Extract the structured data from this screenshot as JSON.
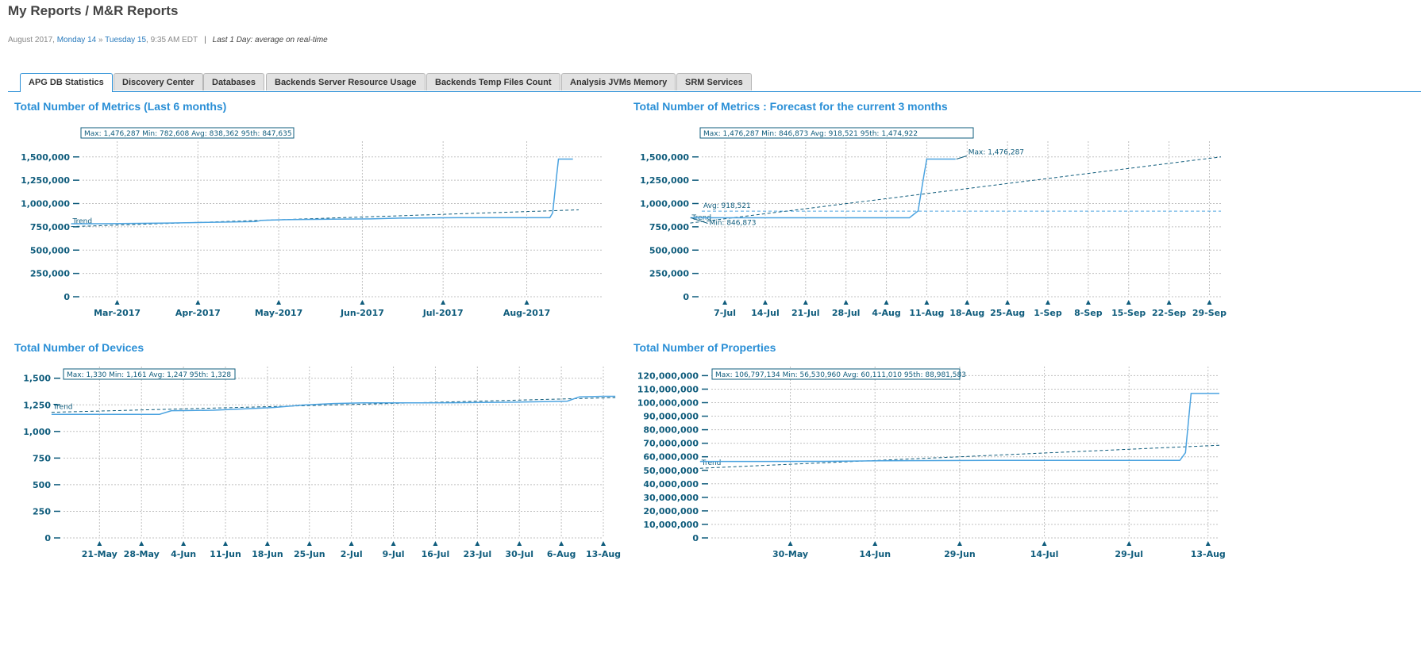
{
  "header": {
    "title": "My Reports / M&R Reports",
    "date_prefix": "August 2017, ",
    "date_from": "Monday 14",
    "date_arrow": " » ",
    "date_to": "Tuesday 15",
    "time": ", 9:35 AM EDT",
    "separator": "|",
    "note": "Last 1 Day: average on real-time"
  },
  "tabs": [
    {
      "label": "APG DB Statistics",
      "active": true
    },
    {
      "label": "Discovery Center",
      "active": false
    },
    {
      "label": "Databases",
      "active": false
    },
    {
      "label": "Backends Server Resource Usage",
      "active": false
    },
    {
      "label": "Backends Temp Files Count",
      "active": false
    },
    {
      "label": "Analysis JVMs Memory",
      "active": false
    },
    {
      "label": "SRM Services",
      "active": false
    }
  ],
  "colors": {
    "accent": "#2a8fd6",
    "line": "#4ba3e0",
    "axis": "#0f5c7c",
    "grid": "#c0c0c0"
  },
  "panels": [
    {
      "title": "Total Number of Metrics (Last 6 months)"
    },
    {
      "title": "Total Number of Metrics : Forecast for the current 3 months"
    },
    {
      "title": "Total Number of Devices"
    },
    {
      "title": "Total Number of Properties"
    }
  ],
  "chart_data": [
    {
      "type": "line",
      "title": "Total Number of Metrics (Last 6 months)",
      "stats": "Max: 1,476,287   Min: 782,608   Avg: 838,362   95th: 847,635",
      "ylim": [
        0,
        1600000
      ],
      "yticks": [
        0,
        250000,
        500000,
        750000,
        1000000,
        1250000,
        1500000
      ],
      "ytick_labels": [
        "0",
        "250,000",
        "500,000",
        "750,000",
        "1,000,000",
        "1,250,000",
        "1,500,000"
      ],
      "xlim": [
        0,
        180
      ],
      "xticks": [
        12,
        40,
        68,
        97,
        125,
        154
      ],
      "xtick_labels": [
        "Mar-2017",
        "Apr-2017",
        "May-2017",
        "Jun-2017",
        "Jul-2017",
        "Aug-2017"
      ],
      "grid": true,
      "series": [
        {
          "x": [
            -4,
            5,
            10,
            20,
            30,
            40,
            50,
            60,
            62,
            70,
            80,
            90,
            100,
            106,
            110,
            120,
            130,
            140,
            150,
            160,
            162,
            163,
            164,
            165,
            167,
            170
          ],
          "y": [
            782608,
            782608,
            784000,
            787000,
            791000,
            796000,
            801000,
            806000,
            820000,
            826000,
            830000,
            833000,
            835000,
            840000,
            843000,
            846000,
            847635,
            847635,
            847635,
            847635,
            847635,
            900000,
            1200000,
            1476287,
            1476287,
            1476287
          ]
        }
      ],
      "trend": {
        "label": "Trend",
        "x": [
          -4,
          172
        ],
        "y": [
          752000,
          932000
        ]
      }
    },
    {
      "type": "line",
      "title": "Total Number of Metrics : Forecast for the current 3 months",
      "stats": "Max: 1,476,287   Min: 846,873   Avg: 918,521   95th: 1,474,922",
      "ylim": [
        0,
        1600000
      ],
      "yticks": [
        0,
        250000,
        500000,
        750000,
        1000000,
        1250000,
        1500000
      ],
      "ytick_labels": [
        "0",
        "250,000",
        "500,000",
        "750,000",
        "1,000,000",
        "1,250,000",
        "1,500,000"
      ],
      "xlim": [
        0,
        90
      ],
      "xticks": [
        4,
        11,
        18,
        25,
        32,
        39,
        46,
        53,
        60,
        67,
        74,
        81,
        88
      ],
      "xtick_labels": [
        "7-Jul",
        "14-Jul",
        "21-Jul",
        "28-Jul",
        "4-Aug",
        "11-Aug",
        "18-Aug",
        "25-Aug",
        "1-Sep",
        "8-Sep",
        "15-Sep",
        "22-Sep",
        "29-Sep"
      ],
      "grid": true,
      "series": [
        {
          "x": [
            -2,
            10,
            20,
            30,
            36,
            37.5,
            38.5,
            39,
            43,
            44
          ],
          "y": [
            846873,
            846873,
            846873,
            846873,
            846873,
            920000,
            1300000,
            1476287,
            1476287,
            1476287
          ]
        }
      ],
      "trend": {
        "label": "Trend",
        "x": [
          -2,
          90
        ],
        "y": [
          790000,
          1500000
        ]
      },
      "avg_line": {
        "value": 918521,
        "label": "Avg: 918,521"
      },
      "annotations": [
        {
          "text": "Max: 1,476,287",
          "x": 44,
          "y": 1476287
        },
        {
          "text": "Min: 846,873",
          "x": -2,
          "y": 846873
        }
      ]
    },
    {
      "type": "line",
      "title": "Total Number of Devices",
      "stats": "Max: 1,330   Min: 1,161   Avg: 1,247   95th: 1,328",
      "ylim": [
        0,
        1550
      ],
      "yticks": [
        0,
        250,
        500,
        750,
        1000,
        1250,
        1500
      ],
      "ytick_labels": [
        "0",
        "250",
        "500",
        "750",
        "1,000",
        "1,250",
        "1,500"
      ],
      "xlim": [
        0,
        90
      ],
      "xticks": [
        6,
        13,
        20,
        27,
        34,
        41,
        48,
        55,
        62,
        69,
        76,
        83,
        90
      ],
      "xtick_labels": [
        "21-May",
        "28-May",
        "4-Jun",
        "11-Jun",
        "18-Jun",
        "25-Jun",
        "2-Jul",
        "9-Jul",
        "16-Jul",
        "23-Jul",
        "30-Jul",
        "6-Aug",
        "13-Aug"
      ],
      "grid": true,
      "series": [
        {
          "x": [
            -2,
            5,
            10,
            16,
            18,
            20,
            25,
            30,
            35,
            40,
            45,
            50,
            55,
            60,
            65,
            70,
            75,
            80,
            84,
            86,
            90,
            92
          ],
          "y": [
            1161,
            1161,
            1161,
            1161,
            1195,
            1196,
            1200,
            1212,
            1225,
            1248,
            1262,
            1268,
            1268,
            1268,
            1270,
            1272,
            1275,
            1280,
            1285,
            1325,
            1330,
            1330
          ]
        }
      ],
      "trend": {
        "label": "Trend",
        "x": [
          -2,
          92
        ],
        "y": [
          1180,
          1318
        ]
      }
    },
    {
      "type": "line",
      "title": "Total Number of Properties",
      "stats": "Max: 106,797,134   Min: 56,530,960   Avg: 60,111,010   95th: 88,981,583",
      "ylim": [
        0,
        122000000
      ],
      "yticks": [
        0,
        10000000,
        20000000,
        30000000,
        40000000,
        50000000,
        60000000,
        70000000,
        80000000,
        90000000,
        100000000,
        110000000,
        120000000
      ],
      "ytick_labels": [
        "0",
        "10,000,000",
        "20,000,000",
        "30,000,000",
        "40,000,000",
        "50,000,000",
        "60,000,000",
        "70,000,000",
        "80,000,000",
        "90,000,000",
        "100,000,000",
        "110,000,000",
        "120,000,000"
      ],
      "xlim": [
        0,
        90
      ],
      "xticks": [
        14,
        29,
        44,
        59,
        74,
        88
      ],
      "xtick_labels": [
        "30-May",
        "14-Jun",
        "29-Jun",
        "14-Jul",
        "29-Jul",
        "13-Aug"
      ],
      "grid": true,
      "series": [
        {
          "x": [
            -2,
            10,
            20,
            30,
            40,
            50,
            60,
            70,
            80,
            83,
            84,
            85,
            87,
            90
          ],
          "y": [
            56530960,
            56530960,
            56600000,
            57000000,
            57200000,
            57300000,
            57300000,
            57300000,
            57300000,
            57300000,
            63000000,
            106797134,
            106797134,
            106797134
          ]
        }
      ],
      "trend": {
        "label": "Trend",
        "x": [
          -2,
          90
        ],
        "y": [
          51500000,
          68500000
        ]
      }
    }
  ]
}
